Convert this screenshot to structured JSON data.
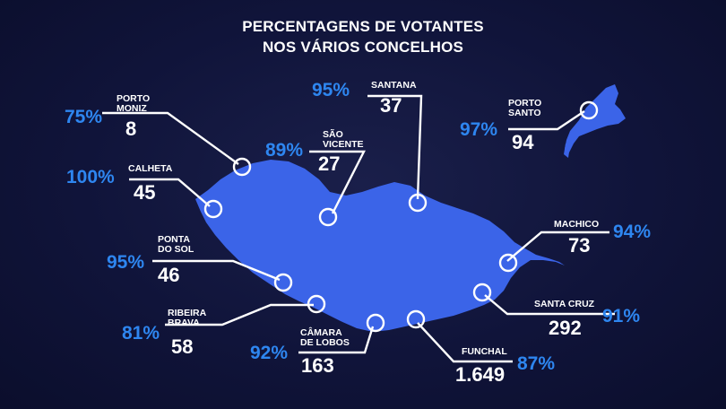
{
  "title": {
    "line1": "PERCENTAGENS DE VOTANTES",
    "line2": "NOS VÁRIOS CONCELHOS"
  },
  "colors": {
    "background": "#10143a",
    "island": "#3b64e8",
    "accent": "#2e86f0",
    "text": "#ffffff"
  },
  "municipalities": [
    {
      "id": "porto-moniz",
      "name": "PORTO\nMONIZ",
      "count": "8",
      "percent": "75%"
    },
    {
      "id": "calheta",
      "name": "CALHETA",
      "count": "45",
      "percent": "100%"
    },
    {
      "id": "sao-vicente",
      "name": "SÃO\nVICENTE",
      "count": "27",
      "percent": "89%"
    },
    {
      "id": "santana",
      "name": "SANTANA",
      "count": "37",
      "percent": "95%"
    },
    {
      "id": "porto-santo",
      "name": "PORTO\nSANTO",
      "count": "94",
      "percent": "97%"
    },
    {
      "id": "ponta-do-sol",
      "name": "PONTA\nDO SOL",
      "count": "46",
      "percent": "95%"
    },
    {
      "id": "ribeira-brava",
      "name": "RIBEIRA\nBRAVA",
      "count": "58",
      "percent": "81%"
    },
    {
      "id": "camara-de-lobos",
      "name": "CÂMARA\nDE LOBOS",
      "count": "163",
      "percent": "92%"
    },
    {
      "id": "funchal",
      "name": "FUNCHAL",
      "count": "1.649",
      "percent": "87%"
    },
    {
      "id": "santa-cruz",
      "name": "SANTA CRUZ",
      "count": "292",
      "percent": "91%"
    },
    {
      "id": "machico",
      "name": "MACHICO",
      "count": "73",
      "percent": "94%"
    }
  ]
}
